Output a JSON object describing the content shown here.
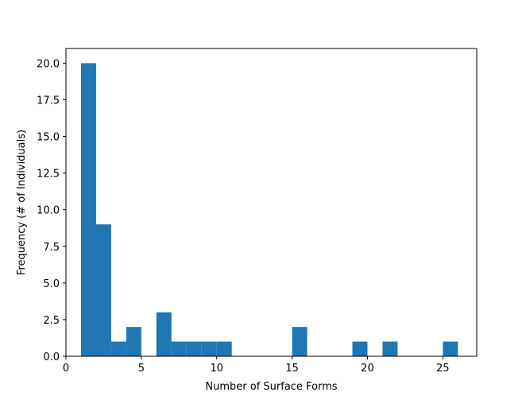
{
  "chart_data": {
    "type": "bar",
    "title": "",
    "xlabel": "Number of Surface Forms",
    "ylabel": "Frequency (# of Individuals)",
    "xlim": [
      0,
      27.25
    ],
    "ylim": [
      0,
      21
    ],
    "xticks": [
      0,
      5,
      10,
      15,
      20,
      25
    ],
    "yticks": [
      0.0,
      2.5,
      5.0,
      7.5,
      10.0,
      12.5,
      15.0,
      17.5,
      20.0
    ],
    "xtick_labels": [
      "0",
      "5",
      "10",
      "15",
      "20",
      "25"
    ],
    "ytick_labels": [
      "0.0",
      "2.5",
      "5.0",
      "7.5",
      "10.0",
      "12.5",
      "15.0",
      "17.5",
      "20.0"
    ],
    "bin_edges": [
      1,
      2,
      3,
      4,
      5,
      6,
      7,
      8,
      9,
      10,
      11,
      12,
      13,
      14,
      15,
      16,
      17,
      18,
      19,
      20,
      21,
      22,
      23,
      24,
      25,
      26
    ],
    "values": [
      20,
      9,
      1,
      2,
      0,
      3,
      1,
      1,
      1,
      1,
      0,
      0,
      0,
      0,
      2,
      0,
      0,
      0,
      1,
      0,
      1,
      0,
      0,
      0,
      1
    ],
    "grid": false,
    "legend": "none",
    "bar_color": "#1f77b4",
    "axis_color": "#000000",
    "background": "#ffffff"
  }
}
